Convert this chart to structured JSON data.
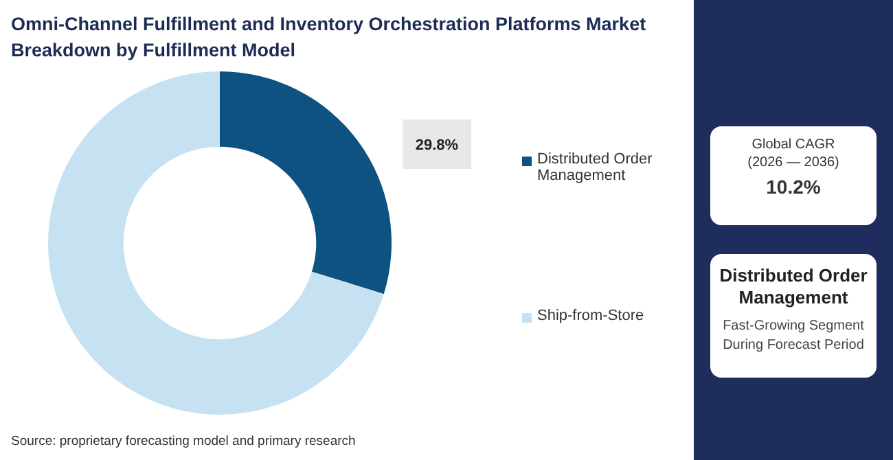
{
  "chart_data": {
    "type": "donut",
    "title": "Omni-Channel Fulfillment and Inventory Orchestration Platforms Market Breakdown by Fulfillment Model",
    "categories": [
      "Distributed Order Management",
      "Ship-from-Store"
    ],
    "values": [
      29.8,
      70.2
    ],
    "colors": [
      "#0d5280",
      "#c6e2f2"
    ],
    "value_labels": [
      "29.8%",
      null
    ],
    "legend": "right",
    "annotations": [
      "Source: proprietary forecasting model and primary research",
      "Global CAGR",
      "(2026 — 2036)",
      "10.2%",
      "Distributed Order Management",
      "Fast-Growing Segment During Forecast Period"
    ]
  }
}
